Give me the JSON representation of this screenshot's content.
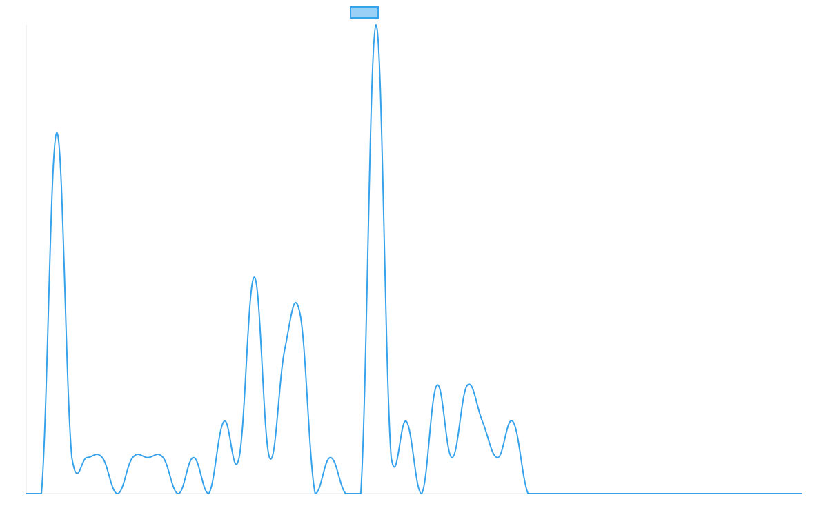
{
  "chart_data": {
    "type": "line",
    "title": "",
    "xlabel": "",
    "ylabel": "",
    "legend": {
      "placement": "top-center",
      "label": ""
    },
    "series": [
      {
        "values": [
          0,
          0,
          50,
          5,
          5,
          5,
          0,
          5,
          5,
          5,
          0,
          5,
          0,
          10,
          5,
          30,
          5,
          20,
          25,
          0,
          5,
          0,
          0,
          65,
          5,
          10,
          0,
          15,
          5,
          15,
          10,
          5,
          10,
          0,
          0,
          0,
          0,
          0,
          0,
          0,
          0,
          0,
          0,
          0,
          0,
          0,
          0,
          0,
          0,
          0,
          0,
          0
        ]
      }
    ],
    "ylim": [
      0,
      65
    ],
    "grid": false,
    "colors": {
      "line": "#36a2eb",
      "legend_fill": "#9ad0f5",
      "axis": "#e5e5e5"
    }
  }
}
